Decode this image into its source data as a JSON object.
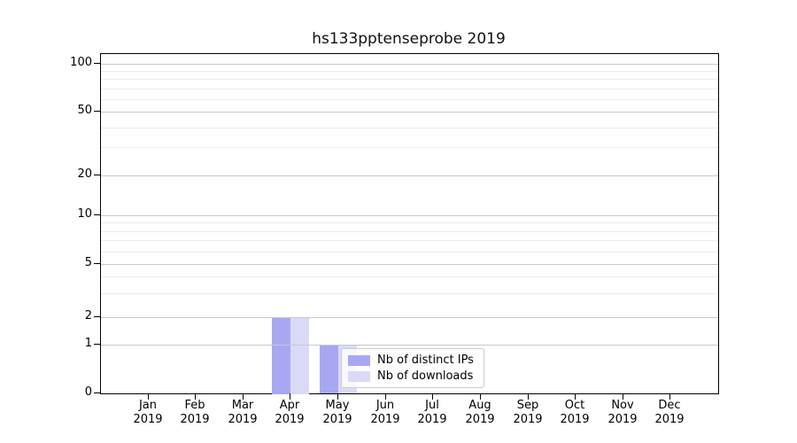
{
  "figure": {
    "title": "hs133pptenseprobe 2019",
    "background": "#ffffff"
  },
  "chart_data": {
    "type": "bar",
    "title": "hs133pptenseprobe 2019",
    "categories": [
      "Jan 2019",
      "Feb 2019",
      "Mar 2019",
      "Apr 2019",
      "May 2019",
      "Jun 2019",
      "Jul 2019",
      "Aug 2019",
      "Sep 2019",
      "Oct 2019",
      "Nov 2019",
      "Dec 2019"
    ],
    "x_tick_month_labels": [
      "Jan",
      "Feb",
      "Mar",
      "Apr",
      "May",
      "Jun",
      "Jul",
      "Aug",
      "Sep",
      "Oct",
      "Nov",
      "Dec"
    ],
    "x_tick_year_label": "2019",
    "series": [
      {
        "name": "Nb of distinct IPs",
        "color": "#a8a8f2",
        "values": [
          0,
          0,
          0,
          2,
          1,
          0,
          0,
          0,
          0,
          0,
          0,
          0
        ]
      },
      {
        "name": "Nb of downloads",
        "color": "#dadaf8",
        "values": [
          0,
          0,
          0,
          2,
          1,
          0,
          0,
          0,
          0,
          0,
          0,
          0
        ]
      }
    ],
    "yscale": "symlog",
    "ylim": [
      0,
      100
    ],
    "ytick_values": [
      0,
      1,
      2,
      5,
      10,
      20,
      50,
      100
    ],
    "ytick_labels": [
      "0",
      "1",
      "2",
      "5",
      "10",
      "20",
      "50",
      "100"
    ],
    "xlabel": "",
    "ylabel": "",
    "grid": "horizontal major and minor gridlines",
    "legend_position": "inside lower center",
    "legend": {
      "items": [
        {
          "label": "Nb of distinct IPs",
          "color": "#a8a8f2"
        },
        {
          "label": "Nb of downloads",
          "color": "#dadaf8"
        }
      ]
    },
    "colors": {
      "major_grid": "#c9c9c9",
      "minor_grid": "#ececec",
      "spine": "#000000",
      "legend_border": "#cccccc"
    }
  }
}
